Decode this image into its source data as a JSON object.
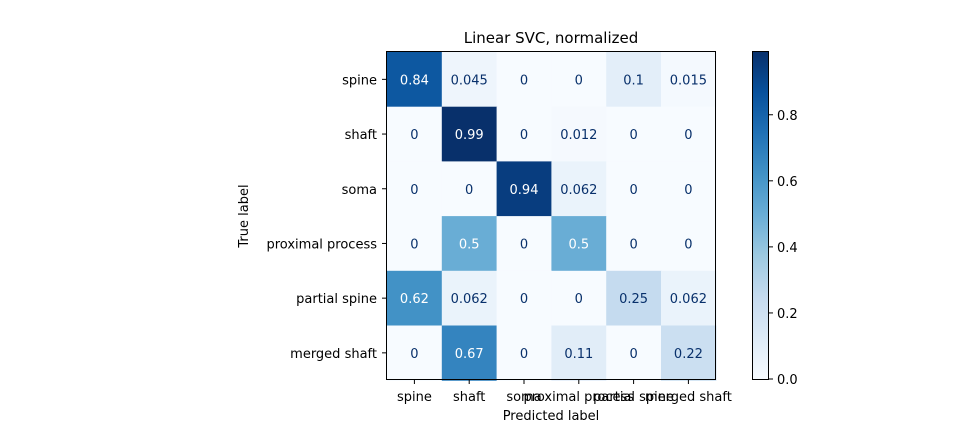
{
  "chart_data": {
    "type": "heatmap",
    "title": "Linear SVC, normalized",
    "xlabel": "Predicted label",
    "ylabel": "True label",
    "x_categories": [
      "spine",
      "shaft",
      "soma",
      "proximal process",
      "partial spine",
      "merged shaft"
    ],
    "y_categories": [
      "spine",
      "shaft",
      "soma",
      "proximal process",
      "partial spine",
      "merged shaft"
    ],
    "values": [
      [
        0.84,
        0.045,
        0,
        0,
        0.1,
        0.015
      ],
      [
        0,
        0.99,
        0,
        0.012,
        0,
        0
      ],
      [
        0,
        0,
        0.94,
        0.062,
        0,
        0
      ],
      [
        0,
        0.5,
        0,
        0.5,
        0,
        0
      ],
      [
        0.62,
        0.062,
        0,
        0,
        0.25,
        0.062
      ],
      [
        0,
        0.67,
        0,
        0.11,
        0,
        0.22
      ]
    ],
    "cell_labels": [
      [
        "0.84",
        "0.045",
        "0",
        "0",
        "0.1",
        "0.015"
      ],
      [
        "0",
        "0.99",
        "0",
        "0.012",
        "0",
        "0"
      ],
      [
        "0",
        "0",
        "0.94",
        "0.062",
        "0",
        "0"
      ],
      [
        "0",
        "0.5",
        "0",
        "0.5",
        "0",
        "0"
      ],
      [
        "0.62",
        "0.062",
        "0",
        "0",
        "0.25",
        "0.062"
      ],
      [
        "0",
        "0.67",
        "0",
        "0.11",
        "0",
        "0.22"
      ]
    ],
    "colormap": "Blues",
    "color_range": [
      0,
      0.99
    ],
    "colorbar_ticks": [
      0.0,
      0.2,
      0.4,
      0.6,
      0.8
    ],
    "colorbar_tick_labels": [
      "0.0",
      "0.2",
      "0.4",
      "0.6",
      "0.8"
    ],
    "grid": false
  }
}
